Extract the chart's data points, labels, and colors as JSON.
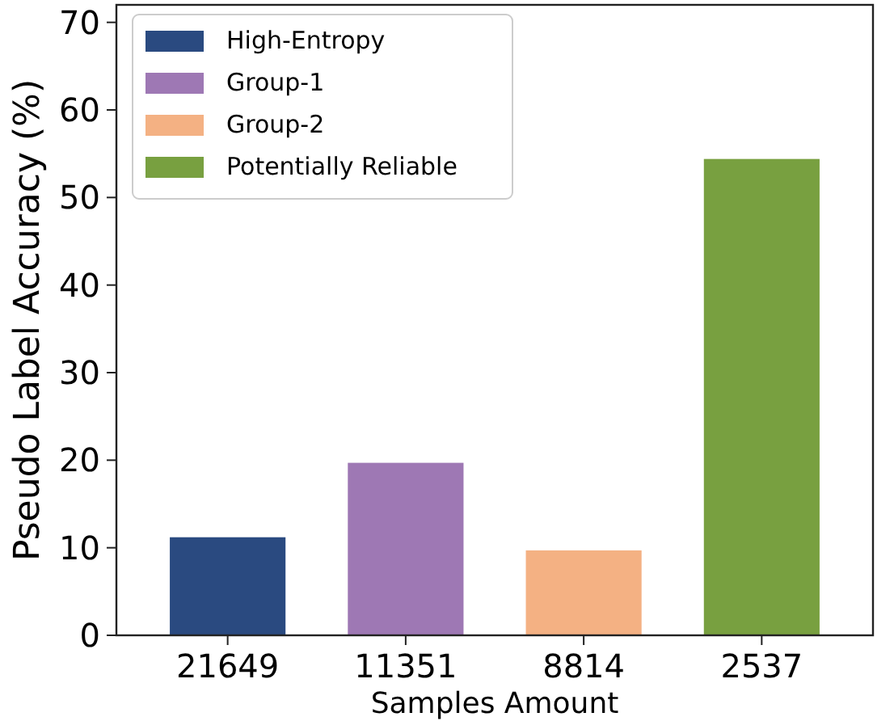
{
  "chart_data": {
    "type": "bar",
    "xlabel": "Samples Amount",
    "ylabel": "Pseudo Label Accuracy (%)",
    "categories": [
      "21649",
      "11351",
      "8814",
      "2537"
    ],
    "series": [
      {
        "name": "High-Entropy",
        "color": "#2a4a80",
        "values": [
          11.2,
          null,
          null,
          null
        ]
      },
      {
        "name": "Group-1",
        "color": "#9e78b4",
        "values": [
          null,
          19.7,
          null,
          null
        ]
      },
      {
        "name": "Group-2",
        "color": "#f4b183",
        "values": [
          null,
          null,
          9.7,
          null
        ]
      },
      {
        "name": "Potentially Reliable",
        "color": "#78a040",
        "values": [
          null,
          null,
          null,
          54.4
        ]
      }
    ],
    "ylim": [
      0,
      72
    ],
    "yticks": [
      0,
      10,
      20,
      30,
      40,
      50,
      60,
      70
    ],
    "grid": false,
    "legend": "top left"
  }
}
